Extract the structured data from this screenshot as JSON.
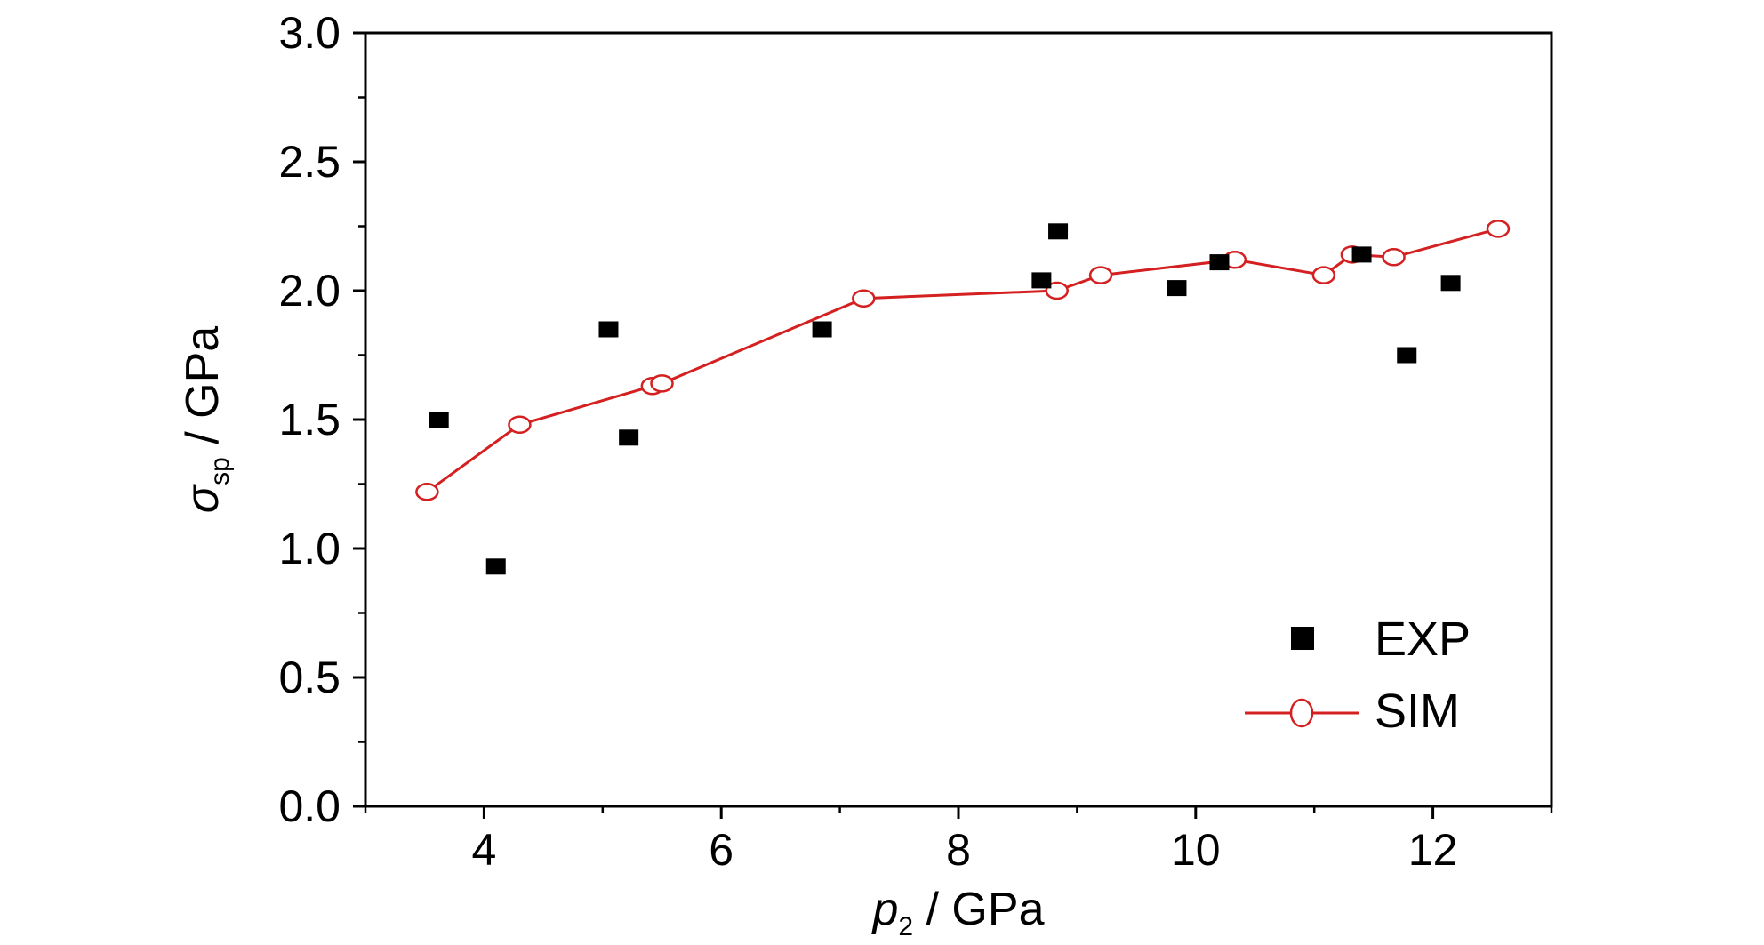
{
  "chart_data": {
    "type": "scatter",
    "xlabel": {
      "symbol": "p",
      "subscript": "2",
      "unit": " / GPa"
    },
    "ylabel": {
      "symbol": "σ",
      "subscript": "sp",
      "unit": " / GPa"
    },
    "xlim": [
      3,
      13
    ],
    "ylim": [
      0,
      3
    ],
    "x_ticks": [
      4,
      6,
      8,
      10,
      12
    ],
    "y_ticks": [
      "0.0",
      "0.5",
      "1.0",
      "1.5",
      "2.0",
      "2.5",
      "3.0"
    ],
    "legend_position": "bottom-right",
    "series": [
      {
        "name": "EXP",
        "style": "square-markers",
        "color": "#000000",
        "points": [
          [
            3.62,
            1.5
          ],
          [
            4.1,
            0.93
          ],
          [
            5.05,
            1.85
          ],
          [
            5.22,
            1.43
          ],
          [
            6.85,
            1.85
          ],
          [
            8.7,
            2.04
          ],
          [
            8.84,
            2.23
          ],
          [
            9.84,
            2.01
          ],
          [
            10.2,
            2.11
          ],
          [
            11.4,
            2.14
          ],
          [
            11.78,
            1.75
          ],
          [
            12.15,
            2.03
          ]
        ]
      },
      {
        "name": "SIM",
        "style": "line-with-open-circles",
        "color": "#d42020",
        "points": [
          [
            3.52,
            1.22
          ],
          [
            4.3,
            1.48
          ],
          [
            5.42,
            1.63
          ],
          [
            5.5,
            1.64
          ],
          [
            7.2,
            1.97
          ],
          [
            8.83,
            2.0
          ],
          [
            9.2,
            2.06
          ],
          [
            10.33,
            2.12
          ],
          [
            11.08,
            2.06
          ],
          [
            11.32,
            2.14
          ],
          [
            11.67,
            2.13
          ],
          [
            12.55,
            2.24
          ]
        ]
      }
    ]
  }
}
